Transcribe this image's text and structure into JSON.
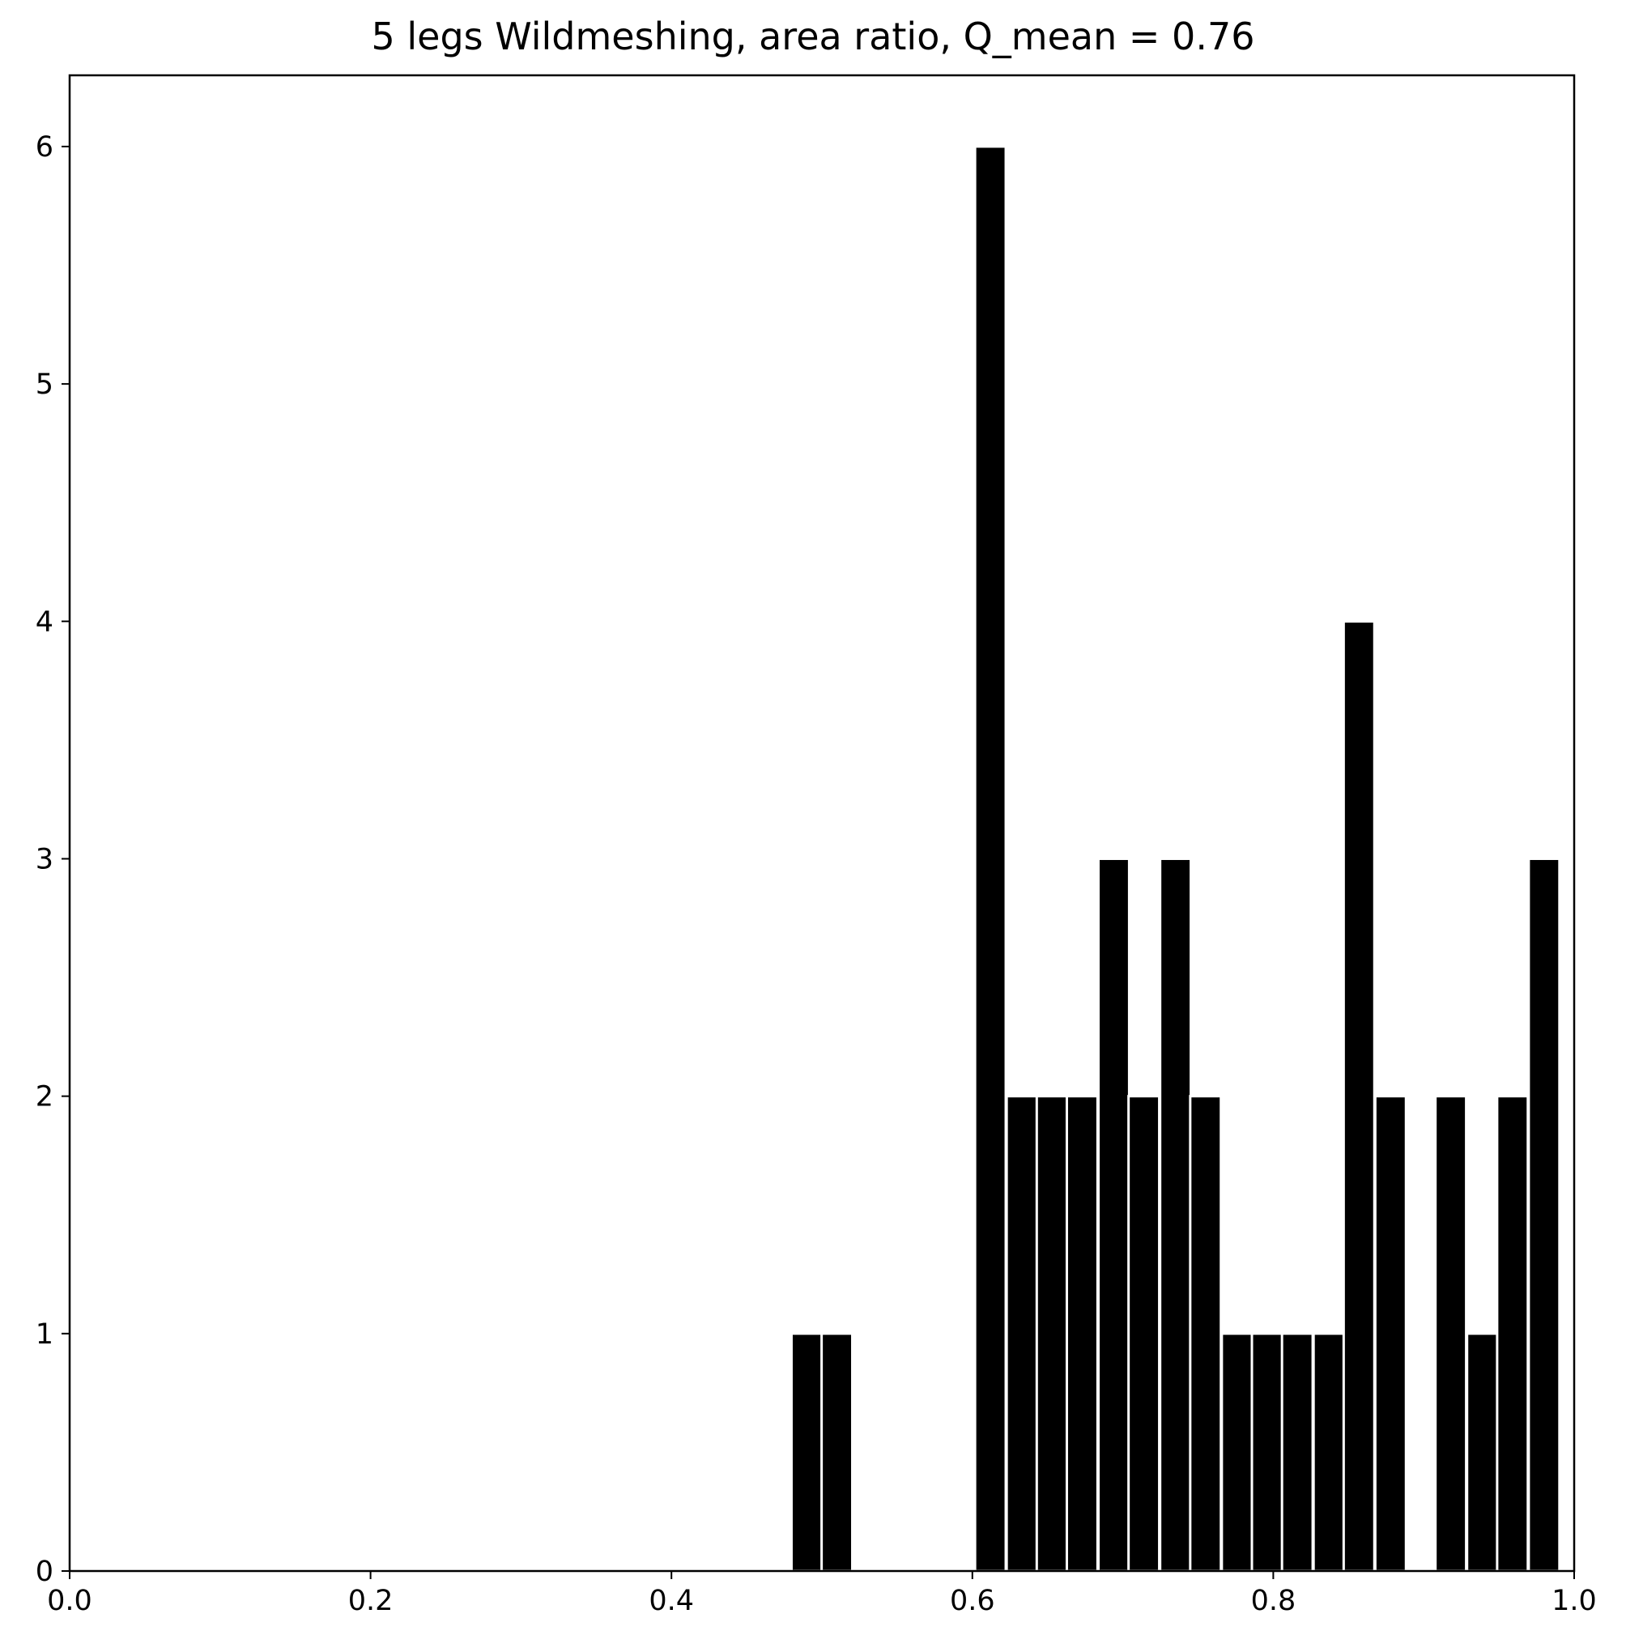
{
  "chart_data": {
    "type": "bar",
    "title": "5 legs Wildmeshing, area ratio, Q_mean = 0.76",
    "xlabel": "",
    "ylabel": "",
    "xlim": [
      0.0,
      1.0
    ],
    "ylim": [
      0,
      6.3
    ],
    "x_ticks": [
      "0.0",
      "0.2",
      "0.4",
      "0.6",
      "0.8",
      "1.0"
    ],
    "y_ticks": [
      "0",
      "1",
      "2",
      "3",
      "4",
      "5",
      "6"
    ],
    "bin_width": 0.0204,
    "bars": [
      {
        "x": 0.49,
        "value": 1
      },
      {
        "x": 0.51,
        "value": 1
      },
      {
        "x": 0.612,
        "value": 6
      },
      {
        "x": 0.633,
        "value": 2
      },
      {
        "x": 0.653,
        "value": 2
      },
      {
        "x": 0.673,
        "value": 2
      },
      {
        "x": 0.694,
        "value": 3
      },
      {
        "x": 0.714,
        "value": 2
      },
      {
        "x": 0.735,
        "value": 3
      },
      {
        "x": 0.755,
        "value": 2
      },
      {
        "x": 0.776,
        "value": 1
      },
      {
        "x": 0.796,
        "value": 1
      },
      {
        "x": 0.816,
        "value": 1
      },
      {
        "x": 0.837,
        "value": 1
      },
      {
        "x": 0.857,
        "value": 4
      },
      {
        "x": 0.878,
        "value": 2
      },
      {
        "x": 0.918,
        "value": 2
      },
      {
        "x": 0.939,
        "value": 1
      },
      {
        "x": 0.959,
        "value": 2
      },
      {
        "x": 0.98,
        "value": 3
      }
    ],
    "bar_color": "#000000",
    "edge_color": "#ffffff",
    "grid": false,
    "legend": "none"
  }
}
